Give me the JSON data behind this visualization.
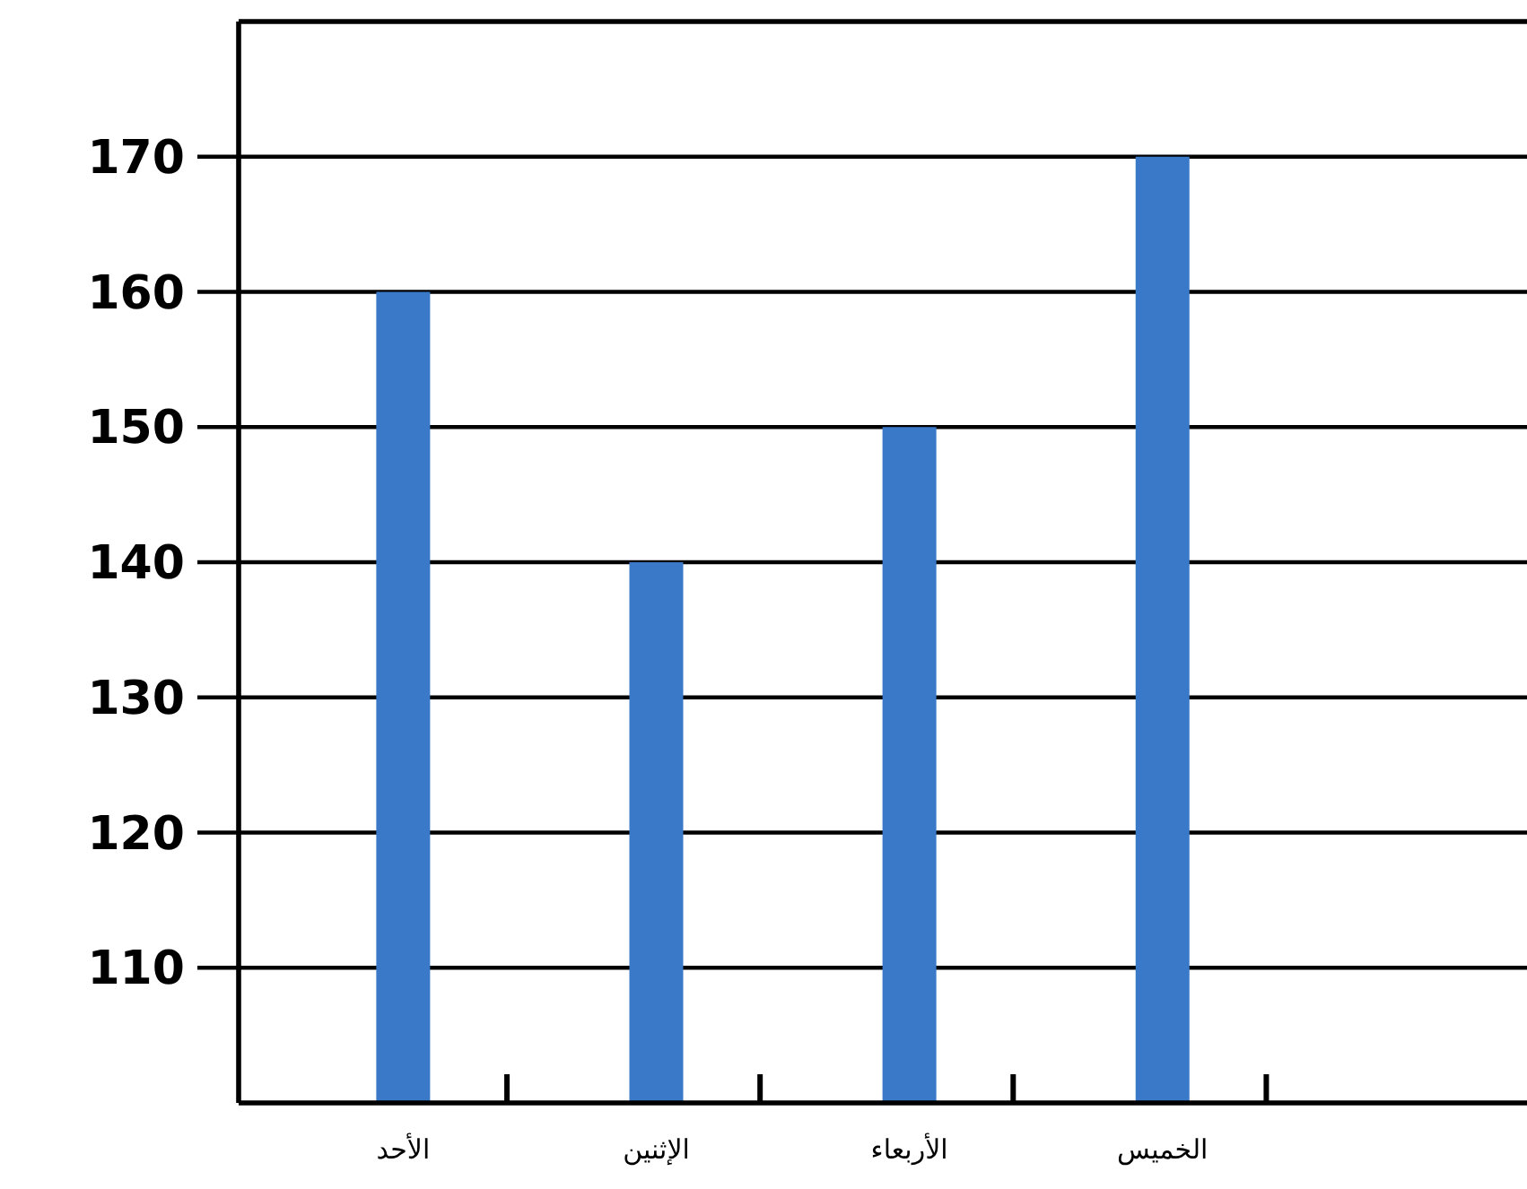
{
  "chart_data": {
    "type": "bar",
    "categories": [
      "الأحد",
      "الإثنين",
      "الأربعاء",
      "الخميس"
    ],
    "values": [
      160,
      140,
      150,
      170
    ],
    "color": "#3a78c8",
    "ylim": [
      100,
      180
    ],
    "yticks": [
      110,
      120,
      130,
      140,
      150,
      160,
      170
    ],
    "grid": "y"
  }
}
